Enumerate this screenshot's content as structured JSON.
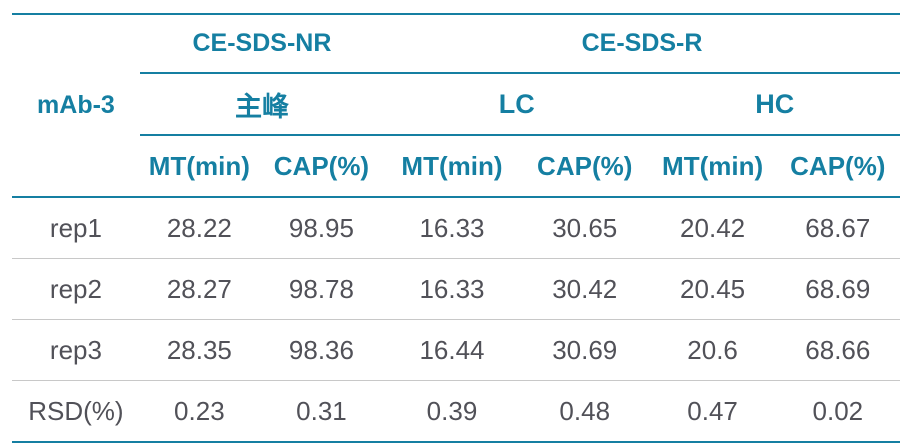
{
  "colors": {
    "accent_teal": "#157fa2",
    "data_text": "#515158",
    "row_separator": "#c8c8c8"
  },
  "table": {
    "corner_label": "mAb-3",
    "group_headers": [
      {
        "label": "CE-SDS-NR"
      },
      {
        "label": "CE-SDS-R"
      }
    ],
    "subgroup_headers": [
      {
        "label": "主峰"
      },
      {
        "label": "LC"
      },
      {
        "label": "HC"
      }
    ],
    "column_headers": [
      "MT(min)",
      "CAP(%)",
      "MT(min)",
      "CAP(%)",
      "MT(min)",
      "CAP(%)"
    ],
    "rows": [
      {
        "label": "rep1",
        "values": [
          "28.22",
          "98.95",
          "16.33",
          "30.65",
          "20.42",
          "68.67"
        ]
      },
      {
        "label": "rep2",
        "values": [
          "28.27",
          "98.78",
          "16.33",
          "30.42",
          "20.45",
          "68.69"
        ]
      },
      {
        "label": "rep3",
        "values": [
          "28.35",
          "98.36",
          "16.44",
          "30.69",
          "20.6",
          "68.66"
        ]
      },
      {
        "label": "RSD(%)",
        "values": [
          "0.23",
          "0.31",
          "0.39",
          "0.48",
          "0.47",
          "0.02"
        ]
      }
    ]
  },
  "chart_data": {
    "type": "table",
    "title": "",
    "corner_label": "mAb-3",
    "column_groups": [
      {
        "group": "CE-SDS-NR",
        "subgroups": [
          {
            "name": "主峰",
            "columns": [
              "MT(min)",
              "CAP(%)"
            ]
          }
        ]
      },
      {
        "group": "CE-SDS-R",
        "subgroups": [
          {
            "name": "LC",
            "columns": [
              "MT(min)",
              "CAP(%)"
            ]
          },
          {
            "name": "HC",
            "columns": [
              "MT(min)",
              "CAP(%)"
            ]
          }
        ]
      }
    ],
    "row_labels": [
      "rep1",
      "rep2",
      "rep3",
      "RSD(%)"
    ],
    "values": [
      [
        28.22,
        98.95,
        16.33,
        30.65,
        20.42,
        68.67
      ],
      [
        28.27,
        98.78,
        16.33,
        30.42,
        20.45,
        68.69
      ],
      [
        28.35,
        98.36,
        16.44,
        30.69,
        20.6,
        68.66
      ],
      [
        0.23,
        0.31,
        0.39,
        0.48,
        0.47,
        0.02
      ]
    ]
  }
}
